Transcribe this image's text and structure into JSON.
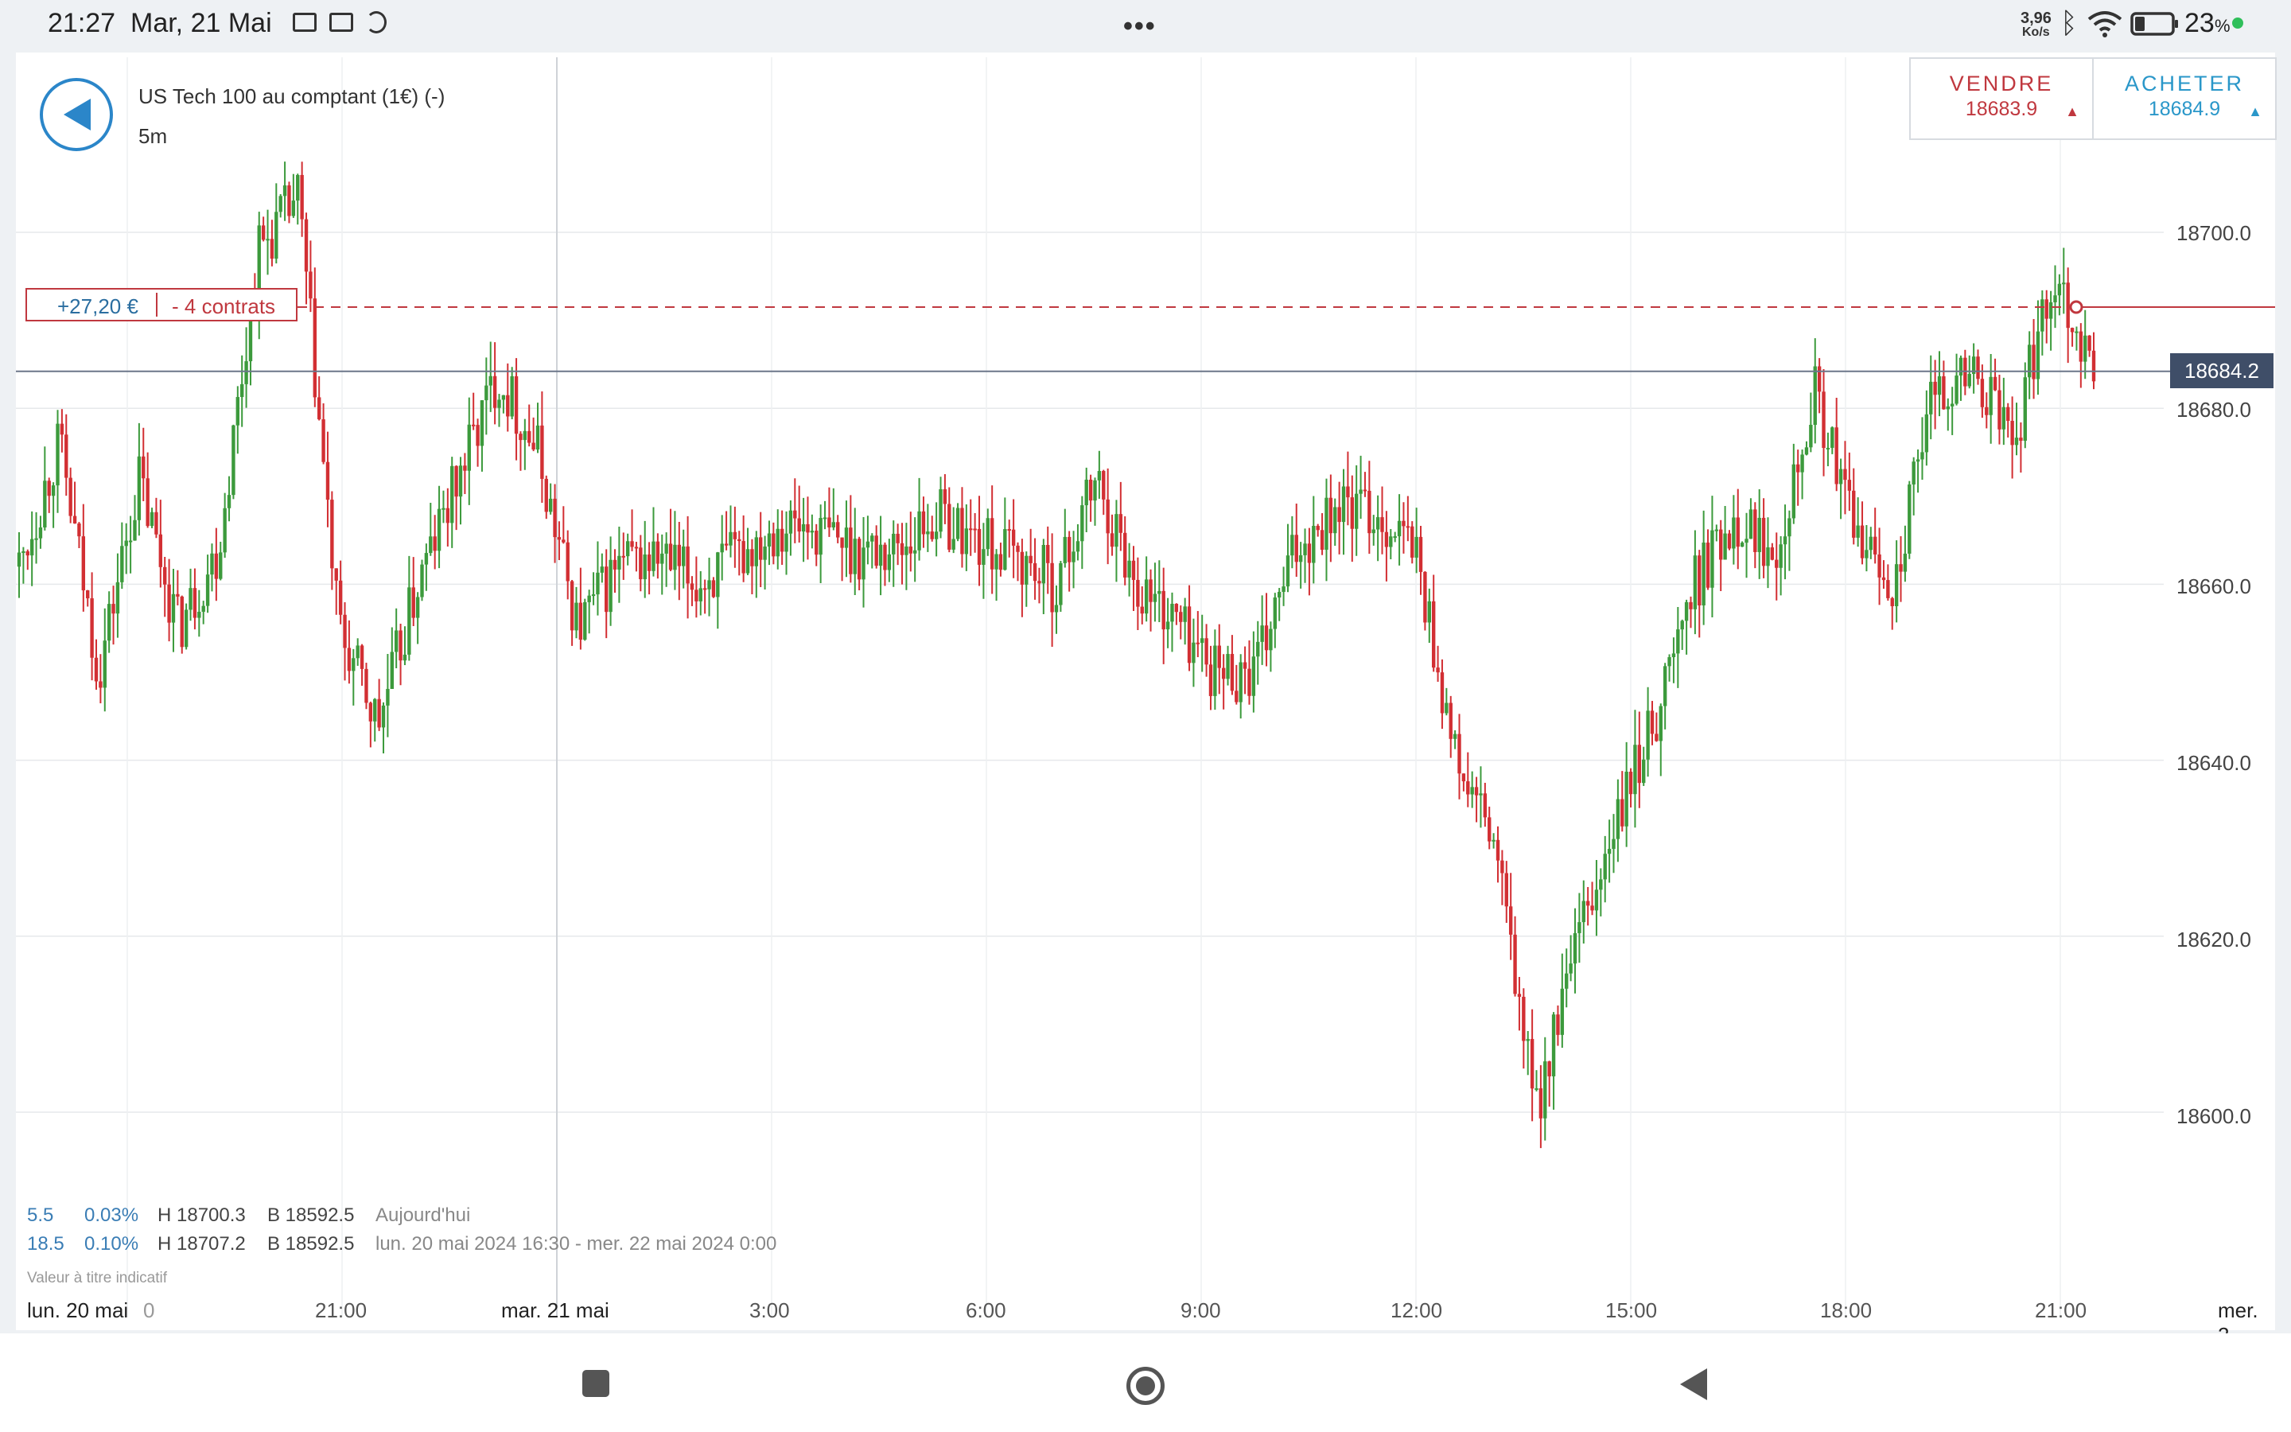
{
  "status_bar": {
    "time": "21:27",
    "date": "Mar, 21 Mai",
    "more_icon": "more-horizontal-icon",
    "net_speed_value": "3,96",
    "net_speed_unit": "Ko/s",
    "battery_pct": "23",
    "battery_unit": "%"
  },
  "header": {
    "title": "US Tech 100 au comptant (1€) (-)",
    "timeframe": "5m"
  },
  "trade": {
    "sell_label": "VENDRE",
    "sell_price": "18683.9",
    "buy_label": "ACHETER",
    "buy_price": "18684.9",
    "sell_color": "#c0383f",
    "buy_color": "#2a97c9"
  },
  "position": {
    "pnl": "+27,20 €",
    "contracts": "- 4 contrats",
    "entry_price": 18691.5
  },
  "current_price_label": "18684.2",
  "stats": {
    "today_change": "5.5",
    "today_pct": "0.03%",
    "today_high": "H 18700.3",
    "today_low": "B 18592.5",
    "today_label": "Aujourd'hui",
    "range_change": "18.5",
    "range_pct": "0.10%",
    "range_high": "H 18707.2",
    "range_low": "B 18592.5",
    "range_label": "lun. 20 mai 2024 16:30 - mer. 22 mai 2024 0:00",
    "disclaimer": "Valeur à titre indicatif"
  },
  "colors": {
    "up": "#3c9a3c",
    "down": "#d22f33",
    "accent": "#2b86c9"
  },
  "chart_data": {
    "type": "candlestick",
    "interval": "5m",
    "ylim": [
      18580,
      18720
    ],
    "y_ticks": [
      "18700.0",
      "18680.0",
      "18660.0",
      "18640.0",
      "18620.0",
      "18600.0"
    ],
    "x_ticks": [
      "lun. 20 mai",
      "0",
      "21:00",
      "mar. 21 mai",
      "3:00",
      "6:00",
      "9:00",
      "12:00",
      "15:00",
      "18:00",
      "21:00",
      "mer. 2"
    ],
    "current_price": 18684.2,
    "close_path": [
      [
        "lun. 20 mai 16:30",
        18662
      ],
      [
        "17:00",
        18676
      ],
      [
        "17:30",
        18650
      ],
      [
        "18:00",
        18672
      ],
      [
        "18:30",
        18655
      ],
      [
        "19:00",
        18664
      ],
      [
        "19:30",
        18698
      ],
      [
        "19:45",
        18704
      ],
      [
        "20:00",
        18655
      ],
      [
        "20:30",
        18644
      ],
      [
        "20:45",
        18660
      ],
      [
        "21:00",
        18672
      ],
      [
        "21:30",
        18684
      ],
      [
        "22:00",
        18675
      ],
      [
        "22:30",
        18655
      ],
      [
        "23:00",
        18662
      ],
      [
        "mar. 21 mai 0:00",
        18663
      ],
      [
        "1:00",
        18660
      ],
      [
        "2:00",
        18663
      ],
      [
        "3:00",
        18667
      ],
      [
        "4:00",
        18666
      ],
      [
        "5:00",
        18664
      ],
      [
        "6:00",
        18664
      ],
      [
        "7:00",
        18668
      ],
      [
        "8:00",
        18665
      ],
      [
        "9:00",
        18663
      ],
      [
        "9:30",
        18660
      ],
      [
        "10:00",
        18672
      ],
      [
        "10:30",
        18660
      ],
      [
        "11:00",
        18656
      ],
      [
        "11:30",
        18650
      ],
      [
        "12:00",
        18650
      ],
      [
        "12:30",
        18664
      ],
      [
        "13:00",
        18669
      ],
      [
        "13:30",
        18668
      ],
      [
        "14:00",
        18664
      ],
      [
        "14:30",
        18640
      ],
      [
        "14:45",
        18630
      ],
      [
        "15:15",
        18600
      ],
      [
        "15:30",
        18618
      ],
      [
        "16:00",
        18632
      ],
      [
        "16:15",
        18645
      ],
      [
        "16:30",
        18660
      ],
      [
        "17:00",
        18668
      ],
      [
        "17:30",
        18664
      ],
      [
        "18:00",
        18682
      ],
      [
        "18:30",
        18666
      ],
      [
        "19:00",
        18660
      ],
      [
        "19:30",
        18682
      ],
      [
        "20:00",
        18684
      ],
      [
        "20:30",
        18676
      ],
      [
        "21:00",
        18696
      ],
      [
        "21:15",
        18684
      ]
    ]
  }
}
